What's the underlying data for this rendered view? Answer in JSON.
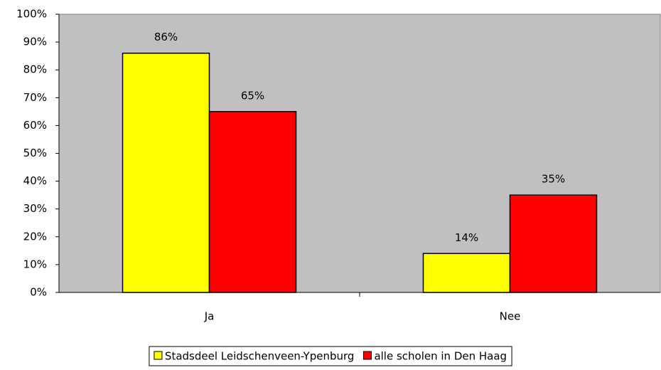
{
  "chart_data": {
    "type": "bar",
    "categories": [
      "Ja",
      "Nee"
    ],
    "series": [
      {
        "name": "Stadsdeel Leidschenveen-Ypenburg",
        "color": "#ffff00",
        "values": [
          86,
          14
        ],
        "value_labels": [
          "86%",
          "14%"
        ]
      },
      {
        "name": "alle scholen in Den Haag",
        "color": "#ff0000",
        "values": [
          65,
          35
        ],
        "value_labels": [
          "65%",
          "35%"
        ]
      }
    ],
    "ylim": [
      0,
      100
    ],
    "yticks": [
      {
        "value": 0,
        "label": "0%"
      },
      {
        "value": 10,
        "label": "10%"
      },
      {
        "value": 20,
        "label": "20%"
      },
      {
        "value": 30,
        "label": "30%"
      },
      {
        "value": 40,
        "label": "40%"
      },
      {
        "value": 50,
        "label": "50%"
      },
      {
        "value": 60,
        "label": "60%"
      },
      {
        "value": 70,
        "label": "70%"
      },
      {
        "value": 80,
        "label": "80%"
      },
      {
        "value": 90,
        "label": "90%"
      },
      {
        "value": 100,
        "label": "100%"
      }
    ],
    "plot_background": "#c0c0c0",
    "legend": "bottom"
  }
}
